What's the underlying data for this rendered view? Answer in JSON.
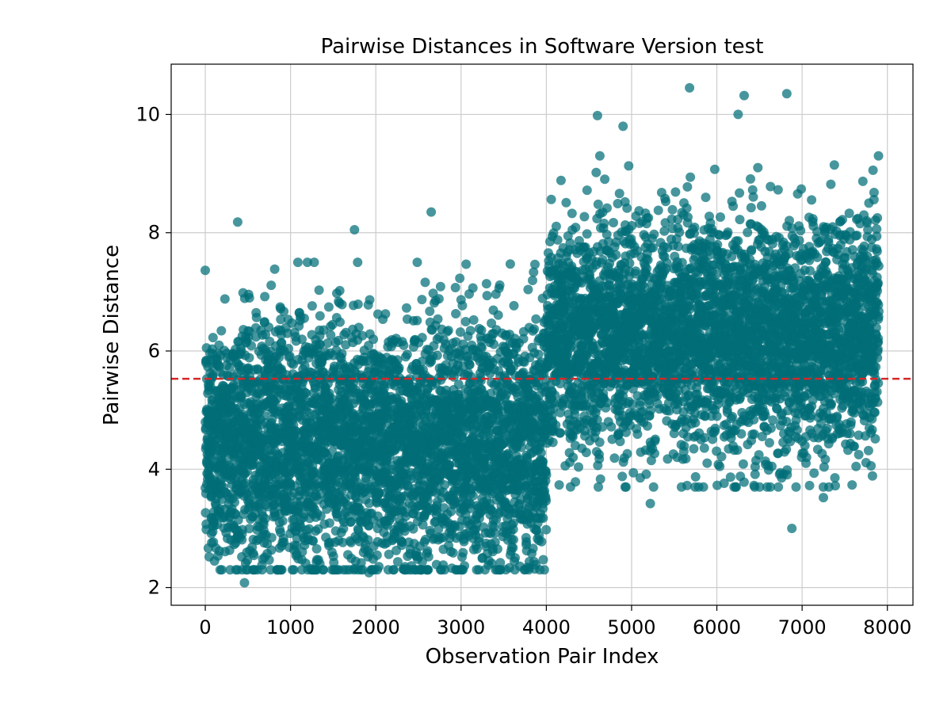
{
  "chart_data": {
    "type": "scatter",
    "title": "Pairwise Distances in Software Version test",
    "xlabel": "Observation Pair Index",
    "ylabel": "Pairwise Distance",
    "xlim": [
      -400,
      8300
    ],
    "ylim": [
      1.7,
      10.85
    ],
    "xticks": [
      0,
      1000,
      2000,
      3000,
      4000,
      5000,
      6000,
      7000,
      8000
    ],
    "yticks": [
      2,
      4,
      6,
      8,
      10
    ],
    "grid": true,
    "series": [
      {
        "name": "Pairwise Distance",
        "color": "#006d77",
        "generated": "dense scatter of ~7900 points; index 0-4000 centered near 4.4, index 4000-7900 centered near 6.2",
        "notable_points": [
          {
            "x": 380,
            "y": 8.18
          },
          {
            "x": 1750,
            "y": 8.05
          },
          {
            "x": 2650,
            "y": 8.35
          },
          {
            "x": 460,
            "y": 2.08
          },
          {
            "x": 1920,
            "y": 2.25
          },
          {
            "x": 4600,
            "y": 9.98
          },
          {
            "x": 5680,
            "y": 10.45
          },
          {
            "x": 6320,
            "y": 10.32
          },
          {
            "x": 6820,
            "y": 10.35
          },
          {
            "x": 6250,
            "y": 10.0
          },
          {
            "x": 6880,
            "y": 3.0
          },
          {
            "x": 5220,
            "y": 3.42
          },
          {
            "x": 7250,
            "y": 3.52
          },
          {
            "x": 4900,
            "y": 9.8
          }
        ]
      }
    ],
    "reference_line": {
      "y": 5.53,
      "color": "#d62728",
      "style": "dashed"
    }
  }
}
